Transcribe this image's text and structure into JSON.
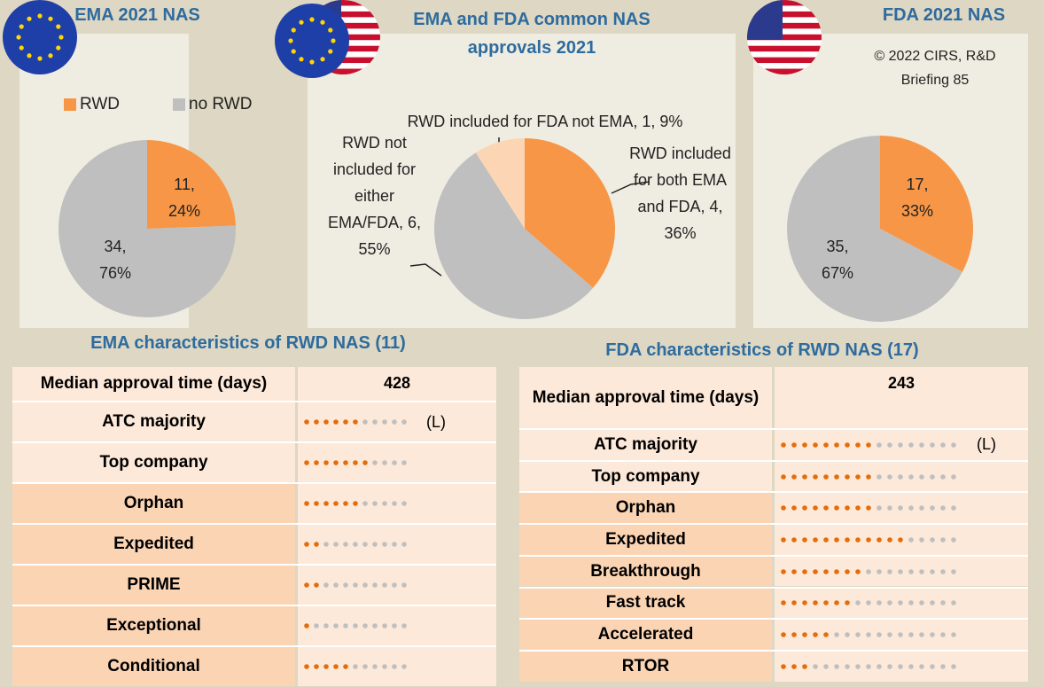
{
  "chart_data": [
    {
      "type": "pie",
      "title": "EMA 2021 NAS",
      "categories": [
        "RWD",
        "no RWD"
      ],
      "values": [
        11,
        34
      ],
      "value_labels": [
        "11, 24%",
        "34, 76%"
      ],
      "colors": [
        "#f79646",
        "#bfbfbf"
      ]
    },
    {
      "type": "pie",
      "title": "EMA and FDA common NAS approvals 2021",
      "values": [
        4,
        6,
        1
      ],
      "value_labels": [
        "RWD included for both EMA and FDA, 4, 36%",
        "RWD not included for either EMA/FDA, 6, 55%",
        "RWD included for FDA not EMA, 1, 9%"
      ],
      "colors": [
        "#f79646",
        "#bfbfbf",
        "#fcd5b5"
      ]
    },
    {
      "type": "pie",
      "title": "FDA 2021 NAS",
      "subtitle": "© 2022 CIRS, R&D Briefing 85",
      "values": [
        17,
        35
      ],
      "value_labels": [
        "17, 33%",
        "35, 67%"
      ],
      "colors": [
        "#f79646",
        "#bfbfbf"
      ]
    },
    {
      "type": "dots",
      "title": "EMA characteristics of RWD NAS (11)",
      "median_label": "Median approval time (days)",
      "median": 428,
      "categories": [
        "ATC majority",
        "Top company",
        "Orphan",
        "Expedited",
        "PRIME",
        "Exceptional",
        "Conditional"
      ],
      "values": [
        6,
        7,
        6,
        2,
        2,
        1,
        5
      ],
      "notes": [
        "(L)",
        null,
        null,
        null,
        null,
        null,
        null
      ],
      "xlim": [
        0,
        11
      ],
      "colors": [
        "#e46c0a",
        "#bfbfbf"
      ]
    },
    {
      "type": "dots",
      "title": "FDA characteristics of RWD NAS (17)",
      "median_label": "Median approval time (days)",
      "median": 243,
      "categories": [
        "ATC majority",
        "Top company",
        "Orphan",
        "Expedited",
        "Breakthrough",
        "Fast track",
        "Accelerated",
        "RTOR"
      ],
      "values": [
        9,
        9,
        9,
        12,
        8,
        7,
        5,
        3
      ],
      "notes": [
        "(L)",
        null,
        null,
        null,
        null,
        null,
        null,
        null
      ],
      "xlim": [
        0,
        17
      ],
      "colors": [
        "#e46c0a",
        "#bfbfbf"
      ]
    }
  ]
}
